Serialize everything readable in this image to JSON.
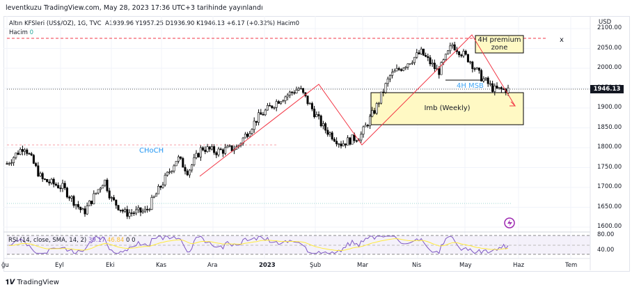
{
  "header": {
    "published": "leventkuzu TradingView.com, May 28, 2023 17:36 UTC+3 tarihinde yayınlandı"
  },
  "legend": {
    "symbol": "Altın KFSleri (US$/OZ), 1G, TVC",
    "ohlc": "A1939.96  Y1957.25  D1936.90  K1946.13  +6.17 (+0.32%)  Hacim0",
    "volume_label": "Hacim",
    "volume_value": "0"
  },
  "price_axis": {
    "currency": "USD",
    "ticks": [
      "2100.00",
      "2050.00",
      "2000.00",
      "1950.00",
      "1900.00",
      "1850.00",
      "1800.00",
      "1750.00",
      "1700.00",
      "1650.00",
      "1600.00"
    ],
    "last_price": "1946.13"
  },
  "rsi": {
    "label": "RSI (14, close, SMA, 14, 2)",
    "rsi": "39.17",
    "sma": "46.84",
    "v1": "0",
    "v2": "0",
    "ticks": [
      "80.00",
      "40.00"
    ]
  },
  "time_axis": [
    "ğu",
    "Eyl",
    "Eki",
    "Kas",
    "Ara",
    "2023",
    "Şub",
    "Mar",
    "Nis",
    "May",
    "Haz",
    "Tem"
  ],
  "annotations": {
    "choch": "CHoCH",
    "premium": "4H premium zone",
    "msb": "4H MSB",
    "imb": "Imb (Weekly)",
    "close_x": "x"
  },
  "brand": "TradingView",
  "colors": {
    "up": "#ffffff",
    "down": "#000000",
    "zigzag": "#f23645",
    "rsi": "#7e57c2",
    "sma": "#ffeb3b",
    "box": "#fff9c4"
  },
  "chart_data": {
    "type": "candlestick",
    "title": "Altın KFSleri (US$/OZ), 1G",
    "ylim": [
      1600,
      2100
    ],
    "path": [
      [
        "Ağu",
        1760
      ],
      [
        "Ağu",
        1805
      ],
      [
        "Eyl",
        1720
      ],
      [
        "Eyl",
        1700
      ],
      [
        "Eki",
        1635
      ],
      [
        "Eki",
        1720
      ],
      [
        "Eki",
        1670
      ],
      [
        "Kas",
        1635
      ],
      [
        "Kas",
        1640
      ],
      [
        "Kas",
        1730
      ],
      [
        "Kas",
        1775
      ],
      [
        "Ara",
        1740
      ],
      [
        "Ara",
        1800
      ],
      [
        "Ara",
        1790
      ],
      [
        "2023",
        1800
      ],
      [
        "2023",
        1875
      ],
      [
        "Şub",
        1920
      ],
      [
        "Şub",
        1950
      ],
      [
        "Şub",
        1870
      ],
      [
        "Şub",
        1850
      ],
      [
        "Mar",
        1810
      ],
      [
        "Mar",
        1830
      ],
      [
        "Mar",
        1900
      ],
      [
        "Nis",
        1980
      ],
      [
        "Nis",
        2000
      ],
      [
        "Nis",
        2040
      ],
      [
        "May",
        1990
      ],
      [
        "May",
        2060
      ],
      [
        "May",
        2020
      ],
      [
        "May",
        1980
      ],
      [
        "May",
        1946
      ]
    ]
  }
}
